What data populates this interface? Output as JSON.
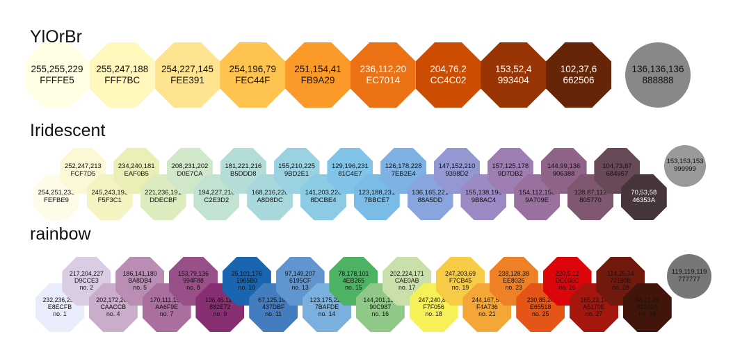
{
  "palettes": [
    {
      "title": "YlOrBr",
      "swatches": [
        {
          "rgb": "255,255,229",
          "hex": "FFFFE5",
          "color": "#FFFFE5",
          "text": "#111111"
        },
        {
          "rgb": "255,247,188",
          "hex": "FFF7BC",
          "color": "#FFF7BC",
          "text": "#111111"
        },
        {
          "rgb": "254,227,145",
          "hex": "FEE391",
          "color": "#FEE391",
          "text": "#111111"
        },
        {
          "rgb": "254,196,79",
          "hex": "FEC44F",
          "color": "#FEC44F",
          "text": "#111111"
        },
        {
          "rgb": "251,154,41",
          "hex": "FB9A29",
          "color": "#FB9A29",
          "text": "#111111"
        },
        {
          "rgb": "236,112,20",
          "hex": "EC7014",
          "color": "#EC7014",
          "text": "#ffffff"
        },
        {
          "rgb": "204,76,2",
          "hex": "CC4C02",
          "color": "#CC4C02",
          "text": "#ffffff"
        },
        {
          "rgb": "153,52,4",
          "hex": "993404",
          "color": "#993404",
          "text": "#ffffff"
        },
        {
          "rgb": "102,37,6",
          "hex": "662506",
          "color": "#662506",
          "text": "#ffffff"
        }
      ],
      "bad": {
        "rgb": "136,136,136",
        "hex": "888888",
        "color": "#888888",
        "text": "#111111"
      }
    },
    {
      "title": "Iridescent",
      "swatches": [
        {
          "rgb": "254,251,233",
          "hex": "FEFBE9",
          "color": "#FEFBE9",
          "text": "#111111"
        },
        {
          "rgb": "252,247,213",
          "hex": "FCF7D5",
          "color": "#FCF7D5",
          "text": "#111111"
        },
        {
          "rgb": "245,243,193",
          "hex": "F5F3C1",
          "color": "#F5F3C1",
          "text": "#111111"
        },
        {
          "rgb": "234,240,181",
          "hex": "EAF0B5",
          "color": "#EAF0B5",
          "text": "#111111"
        },
        {
          "rgb": "221,236,191",
          "hex": "DDECBF",
          "color": "#DDECBF",
          "text": "#111111"
        },
        {
          "rgb": "208,231,202",
          "hex": "D0E7CA",
          "color": "#D0E7CA",
          "text": "#111111"
        },
        {
          "rgb": "194,227,210",
          "hex": "C2E3D2",
          "color": "#C2E3D2",
          "text": "#111111"
        },
        {
          "rgb": "181,221,216",
          "hex": "B5DDD8",
          "color": "#B5DDD8",
          "text": "#111111"
        },
        {
          "rgb": "168,216,220",
          "hex": "A8D8DC",
          "color": "#A8D8DC",
          "text": "#111111"
        },
        {
          "rgb": "155,210,225",
          "hex": "9BD2E1",
          "color": "#9BD2E1",
          "text": "#111111"
        },
        {
          "rgb": "141,203,228",
          "hex": "8DCBE4",
          "color": "#8DCBE4",
          "text": "#111111"
        },
        {
          "rgb": "129,196,231",
          "hex": "81C4E7",
          "color": "#81C4E7",
          "text": "#111111"
        },
        {
          "rgb": "123,188,231",
          "hex": "7BBCE7",
          "color": "#7BBCE7",
          "text": "#111111"
        },
        {
          "rgb": "126,178,228",
          "hex": "7EB2E4",
          "color": "#7EB2E4",
          "text": "#111111"
        },
        {
          "rgb": "136,165,221",
          "hex": "88A5DD",
          "color": "#88A5DD",
          "text": "#111111"
        },
        {
          "rgb": "147,152,210",
          "hex": "9398D2",
          "color": "#9398D2",
          "text": "#111111"
        },
        {
          "rgb": "155,138,196",
          "hex": "9B8AC4",
          "color": "#9B8AC4",
          "text": "#111111"
        },
        {
          "rgb": "157,125,178",
          "hex": "9D7DB2",
          "color": "#9D7DB2",
          "text": "#111111"
        },
        {
          "rgb": "154,112,158",
          "hex": "9A709E",
          "color": "#9A709E",
          "text": "#111111"
        },
        {
          "rgb": "144,99,136",
          "hex": "906388",
          "color": "#906388",
          "text": "#111111"
        },
        {
          "rgb": "128,87,112",
          "hex": "805770",
          "color": "#805770",
          "text": "#111111"
        },
        {
          "rgb": "104,73,87",
          "hex": "684957",
          "color": "#684957",
          "text": "#111111"
        },
        {
          "rgb": "70,53,58",
          "hex": "46353A",
          "color": "#46353A",
          "text": "#ffffff"
        }
      ],
      "bad": {
        "rgb": "153,153,153",
        "hex": "999999",
        "color": "#999999",
        "text": "#111111"
      }
    },
    {
      "title": "rainbow",
      "swatches": [
        {
          "rgb": "232,236,251",
          "hex": "E8ECFB",
          "no": "no. 1",
          "color": "#E8ECFB",
          "text": "#111111"
        },
        {
          "rgb": "217,204,227",
          "hex": "D9CCE3",
          "no": "no. 2",
          "color": "#D9CCE3",
          "text": "#111111"
        },
        {
          "rgb": "202,172,203",
          "hex": "CAACCB",
          "no": "no. 4",
          "color": "#CAACCB",
          "text": "#111111"
        },
        {
          "rgb": "186,141,180",
          "hex": "BA8DB4",
          "no": "no. 5",
          "color": "#BA8DB4",
          "text": "#111111"
        },
        {
          "rgb": "170,111,158",
          "hex": "AA6F9E",
          "no": "no. 7",
          "color": "#AA6F9E",
          "text": "#111111"
        },
        {
          "rgb": "153,79,136",
          "hex": "994F88",
          "no": "no. 8",
          "color": "#994F88",
          "text": "#111111"
        },
        {
          "rgb": "136,46,114",
          "hex": "882E72",
          "no": "no. 9",
          "color": "#882E72",
          "text": "#111111"
        },
        {
          "rgb": "25,101,176",
          "hex": "1965B0",
          "no": "no. 10",
          "color": "#1965B0",
          "text": "#111111"
        },
        {
          "rgb": "67,125,191",
          "hex": "437DBF",
          "no": "no. 11",
          "color": "#437DBF",
          "text": "#111111"
        },
        {
          "rgb": "97,149,207",
          "hex": "6195CF",
          "no": "no. 13",
          "color": "#6195CF",
          "text": "#111111"
        },
        {
          "rgb": "123,175,222",
          "hex": "7BAFDE",
          "no": "no. 14",
          "color": "#7BAFDE",
          "text": "#111111"
        },
        {
          "rgb": "78,178,101",
          "hex": "4EB265",
          "no": "no. 15",
          "color": "#4EB265",
          "text": "#111111"
        },
        {
          "rgb": "144,201,135",
          "hex": "90C987",
          "no": "no. 16",
          "color": "#90C987",
          "text": "#111111"
        },
        {
          "rgb": "202,224,171",
          "hex": "CAE0AB",
          "no": "no. 17",
          "color": "#CAE0AB",
          "text": "#111111"
        },
        {
          "rgb": "247,240,86",
          "hex": "F7F056",
          "no": "no. 18",
          "color": "#F7F056",
          "text": "#111111"
        },
        {
          "rgb": "247,203,69",
          "hex": "F7CB45",
          "no": "no. 19",
          "color": "#F7CB45",
          "text": "#111111"
        },
        {
          "rgb": "244,167,54",
          "hex": "F4A736",
          "no": "no. 21",
          "color": "#F4A736",
          "text": "#111111"
        },
        {
          "rgb": "238,128,38",
          "hex": "EE8026",
          "no": "no. 23",
          "color": "#EE8026",
          "text": "#111111"
        },
        {
          "rgb": "230,85,24",
          "hex": "E65518",
          "no": "no. 25",
          "color": "#E65518",
          "text": "#111111"
        },
        {
          "rgb": "220,5,12",
          "hex": "DC050C",
          "no": "no. 26",
          "color": "#DC050C",
          "text": "#111111"
        },
        {
          "rgb": "165,23,14",
          "hex": "A5170E",
          "no": "no. 27",
          "color": "#A5170E",
          "text": "#111111"
        },
        {
          "rgb": "114,25,14",
          "hex": "72190E",
          "no": "no. 28",
          "color": "#72190E",
          "text": "#111111"
        },
        {
          "rgb": "66,21,10",
          "hex": "42150A",
          "no": "no. 29",
          "color": "#42150A",
          "text": "#111111"
        }
      ],
      "bad": {
        "rgb": "119,119,119",
        "hex": "777777",
        "color": "#777777",
        "text": "#111111"
      }
    }
  ]
}
